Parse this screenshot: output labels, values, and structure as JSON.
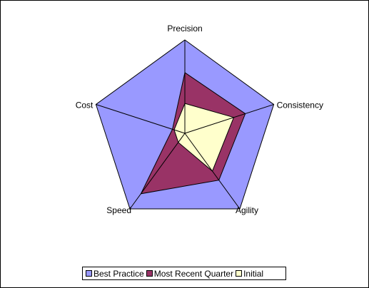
{
  "chart_data": {
    "type": "radar",
    "title": "",
    "axes": [
      "Precision",
      "Consistency",
      "Agility",
      "Speed",
      "Cost"
    ],
    "rmax": 100,
    "grid": false,
    "legend_position": "bottom",
    "series": [
      {
        "name": "Best Practice",
        "values": [
          100,
          100,
          100,
          100,
          100
        ],
        "color": "#9999FF"
      },
      {
        "name": "Most Recent Quarter",
        "values": [
          65,
          68,
          62,
          80,
          14
        ],
        "color": "#993366"
      },
      {
        "name": "Initial",
        "values": [
          32,
          55,
          50,
          12,
          12
        ],
        "color": "#FFFFCC"
      }
    ]
  }
}
